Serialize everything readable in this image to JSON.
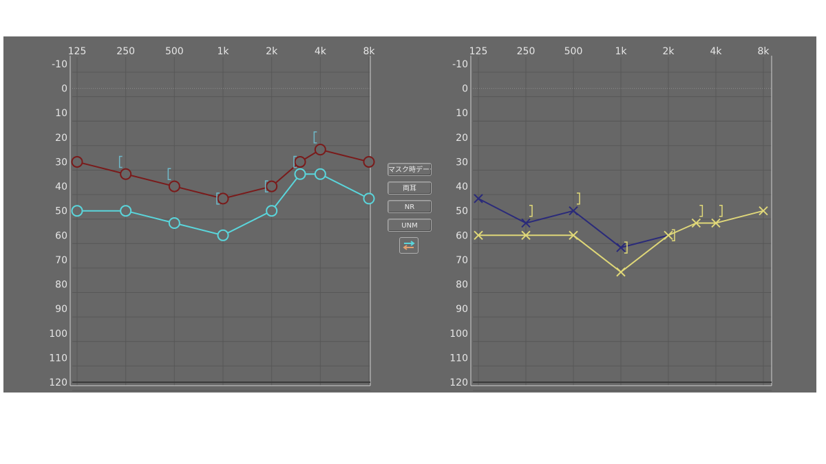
{
  "buttons": {
    "mask": "マスク時データ",
    "both_ears": "両耳",
    "nr": "NR",
    "unm": "UNM"
  },
  "icons": {
    "swap": "swap-arrows-icon"
  },
  "colors": {
    "background": "#676767",
    "grid": "#5a5a5a",
    "right_ear": "#7a1a1a",
    "left_ear": "#2a2a7a",
    "sound_field_right": "#5ad6dc",
    "sound_field_left": "#e0d878",
    "bracket": "#6fb8c8"
  },
  "chart_data": [
    {
      "type": "line",
      "categories": [
        "125",
        "250",
        "500",
        "1k",
        "2k",
        "4k",
        "8k"
      ],
      "x_freq": [
        125,
        250,
        500,
        1000,
        2000,
        4000,
        8000
      ],
      "y_ticks": [
        "-10",
        "0",
        "10",
        "20",
        "30",
        "40",
        "50",
        "60",
        "70",
        "80",
        "90",
        "100",
        "110",
        "120"
      ],
      "ylim": [
        -10,
        120
      ],
      "y_inverted": true,
      "series": [
        {
          "marker": "circle",
          "color": "#7a1a1a",
          "points": [
            [
              125,
              30
            ],
            [
              250,
              35
            ],
            [
              500,
              40
            ],
            [
              1000,
              45
            ],
            [
              2000,
              40
            ],
            [
              3000,
              30
            ],
            [
              4000,
              25
            ],
            [
              8000,
              30
            ]
          ]
        },
        {
          "marker": "circle",
          "color": "#5ad6dc",
          "points": [
            [
              125,
              50
            ],
            [
              250,
              50
            ],
            [
              500,
              55
            ],
            [
              1000,
              60
            ],
            [
              2000,
              50
            ],
            [
              3000,
              35
            ],
            [
              4000,
              35
            ],
            [
              8000,
              45
            ]
          ]
        },
        {
          "marker": "bracket-left",
          "color": "#6fb8c8",
          "points": [
            [
              250,
              30
            ],
            [
              500,
              35
            ],
            [
              1000,
              45
            ],
            [
              2000,
              40
            ],
            [
              3000,
              30
            ],
            [
              4000,
              20
            ]
          ]
        }
      ]
    },
    {
      "type": "line",
      "categories": [
        "125",
        "250",
        "500",
        "1k",
        "2k",
        "4k",
        "8k"
      ],
      "x_freq": [
        125,
        250,
        500,
        1000,
        2000,
        4000,
        8000
      ],
      "y_ticks": [
        "-10",
        "0",
        "10",
        "20",
        "30",
        "40",
        "50",
        "60",
        "70",
        "80",
        "90",
        "100",
        "110",
        "120"
      ],
      "ylim": [
        -10,
        120
      ],
      "y_inverted": true,
      "series": [
        {
          "marker": "x",
          "color": "#2a2a7a",
          "points": [
            [
              125,
              45
            ],
            [
              250,
              55
            ],
            [
              500,
              50
            ],
            [
              1000,
              65
            ],
            [
              2000,
              60
            ],
            [
              3000,
              55
            ],
            [
              4000,
              55
            ],
            [
              8000,
              50
            ]
          ]
        },
        {
          "marker": "x",
          "color": "#e0d878",
          "points": [
            [
              125,
              60
            ],
            [
              250,
              60
            ],
            [
              500,
              60
            ],
            [
              1000,
              75
            ],
            [
              2000,
              60
            ],
            [
              3000,
              55
            ],
            [
              4000,
              55
            ],
            [
              8000,
              50
            ]
          ]
        },
        {
          "marker": "bracket-right",
          "color": "#e0d878",
          "points": [
            [
              250,
              50
            ],
            [
              500,
              45
            ],
            [
              1000,
              65
            ],
            [
              2000,
              60
            ],
            [
              3000,
              50
            ],
            [
              4000,
              50
            ]
          ]
        }
      ]
    }
  ]
}
